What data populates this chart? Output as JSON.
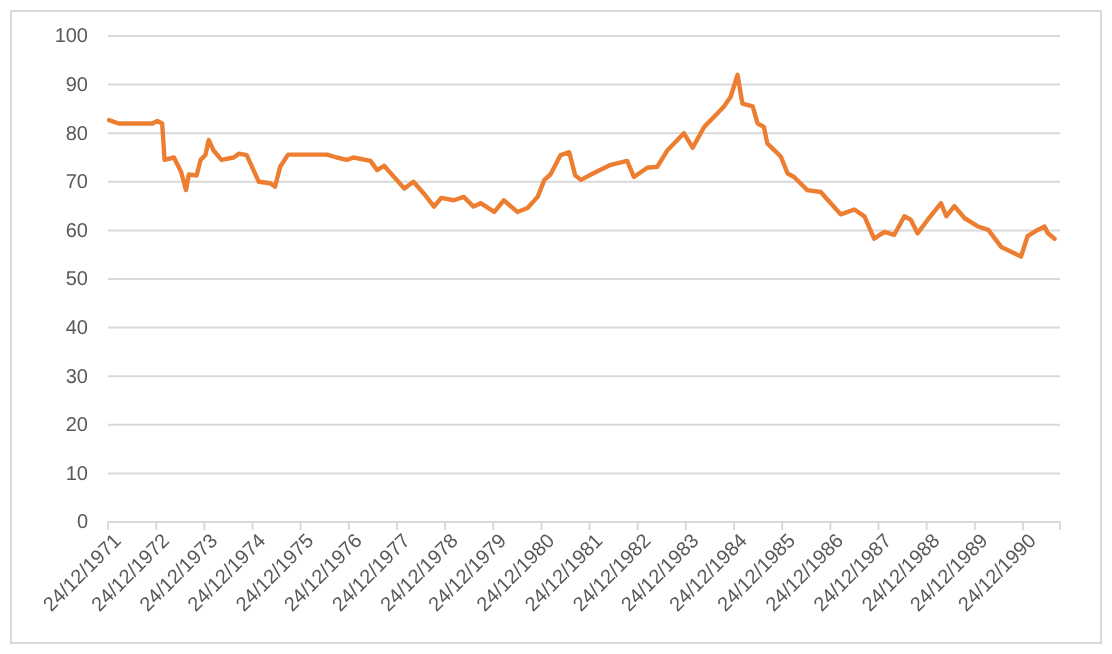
{
  "chart_data": {
    "type": "line",
    "x": [
      "1972-01-01",
      "1972-03-13",
      "1972-11-25",
      "1973-01-01",
      "1973-02-07",
      "1973-02-25",
      "1973-05-07",
      "1973-07-01",
      "1973-08-07",
      "1973-08-28",
      "1973-10-26",
      "1973-11-25",
      "1974-01-01",
      "1974-01-26",
      "1974-03-02",
      "1974-05-03",
      "1974-08-03",
      "1974-09-13",
      "1974-11-10",
      "1975-02-10",
      "1975-05-07",
      "1975-06-13",
      "1975-07-22",
      "1975-09-20",
      "1976-02-10",
      "1976-07-12",
      "1976-09-24",
      "1976-12-09",
      "1977-01-28",
      "1977-06-06",
      "1977-07-26",
      "1977-09-17",
      "1977-12-02",
      "1978-02-18",
      "1978-04-28",
      "1978-07-15",
      "1978-10-01",
      "1978-11-25",
      "1979-02-28",
      "1979-05-14",
      "1979-07-28",
      "1979-09-20",
      "1980-01-01",
      "1980-03-13",
      "1980-06-24",
      "1980-09-09",
      "1980-11-25",
      "1981-01-15",
      "1981-03-02",
      "1981-05-18",
      "1981-07-22",
      "1981-09-06",
      "1981-10-19",
      "1982-01-26",
      "1982-06-02",
      "1982-10-05",
      "1982-11-25",
      "1983-03-06",
      "1983-05-21",
      "1983-08-07",
      "1983-12-09",
      "1984-02-14",
      "1984-05-11",
      "1984-07-26",
      "1984-10-08",
      "1984-11-28",
      "1985-01-19",
      "1985-02-25",
      "1985-05-14",
      "1985-06-20",
      "1985-08-07",
      "1985-09-02",
      "1985-12-13",
      "1986-02-03",
      "1986-03-24",
      "1986-07-01",
      "1986-10-12",
      "1986-12-27",
      "1987-03-13",
      "1987-06-24",
      "1987-09-09",
      "1987-11-21",
      "1988-02-07",
      "1988-04-22",
      "1988-07-08",
      "1988-08-25",
      "1988-10-15",
      "1989-01-01",
      "1989-04-12",
      "1989-05-21",
      "1989-07-22",
      "1989-10-08",
      "1990-01-19",
      "1990-04-05",
      "1990-07-12",
      "1990-10-19",
      "1990-12-09",
      "1991-01-28",
      "1991-04-15",
      "1991-06-06",
      "1991-07-01",
      "1991-08-21"
    ],
    "series": [
      {
        "color": "#ed7d31",
        "values": [
          82.7,
          82.0,
          82,
          82.5,
          82,
          74.5,
          75,
          72,
          68.3,
          71.5,
          71.3,
          74.5,
          75.5,
          78.6,
          76.5,
          74.5,
          75,
          75.8,
          75.5,
          70,
          69.7,
          69,
          73.1,
          75.6,
          75.6,
          75.6,
          75,
          74.5,
          75,
          74.3,
          72.4,
          73.3,
          71.0,
          68.6,
          70,
          67.6,
          64.9,
          66.7,
          66.2,
          66.9,
          64.9,
          65.6,
          63.8,
          66.2,
          63.8,
          64.6,
          66.9,
          70.4,
          71.5,
          75.5,
          76.1,
          71.3,
          70.4,
          71.8,
          73.5,
          74.3,
          71,
          72.9,
          73.1,
          76.5,
          80,
          77,
          81.3,
          83.4,
          85.5,
          87.5,
          92,
          86.1,
          85.5,
          82,
          81.3,
          77.9,
          75.2,
          71.7,
          71,
          68.3,
          67.9,
          65.6,
          63.3,
          64.3,
          62.9,
          58.3,
          59.7,
          59.1,
          62.9,
          62.2,
          59.4,
          62.2,
          65.6,
          62.9,
          65,
          62.5,
          60.8,
          60.1,
          56.6,
          55.3,
          54.6,
          58.8,
          60.1,
          60.8,
          59.4,
          58.3
        ]
      }
    ],
    "xlim": [
      "1971-12-24",
      "1991-10-01"
    ],
    "xticks": [
      {
        "value": "1971-12-24",
        "label": "24/12/1971"
      },
      {
        "value": "1972-12-24",
        "label": "24/12/1972"
      },
      {
        "value": "1973-12-24",
        "label": "24/12/1973"
      },
      {
        "value": "1974-12-24",
        "label": "24/12/1974"
      },
      {
        "value": "1975-12-24",
        "label": "24/12/1975"
      },
      {
        "value": "1976-12-24",
        "label": "24/12/1976"
      },
      {
        "value": "1977-12-24",
        "label": "24/12/1977"
      },
      {
        "value": "1978-12-24",
        "label": "24/12/1978"
      },
      {
        "value": "1979-12-24",
        "label": "24/12/1979"
      },
      {
        "value": "1980-12-24",
        "label": "24/12/1980"
      },
      {
        "value": "1981-12-24",
        "label": "24/12/1981"
      },
      {
        "value": "1982-12-24",
        "label": "24/12/1982"
      },
      {
        "value": "1983-12-24",
        "label": "24/12/1983"
      },
      {
        "value": "1984-12-24",
        "label": "24/12/1984"
      },
      {
        "value": "1985-12-24",
        "label": "24/12/1985"
      },
      {
        "value": "1986-12-24",
        "label": "24/12/1986"
      },
      {
        "value": "1987-12-24",
        "label": "24/12/1987"
      },
      {
        "value": "1988-12-24",
        "label": "24/12/1988"
      },
      {
        "value": "1989-12-24",
        "label": "24/12/1989"
      },
      {
        "value": "1990-12-24",
        "label": "24/12/1990"
      }
    ],
    "ylim": [
      0,
      100
    ],
    "yticks": [
      0,
      10,
      20,
      30,
      40,
      50,
      60,
      70,
      80,
      90,
      100
    ],
    "grid": "y",
    "line_style": "solid"
  }
}
